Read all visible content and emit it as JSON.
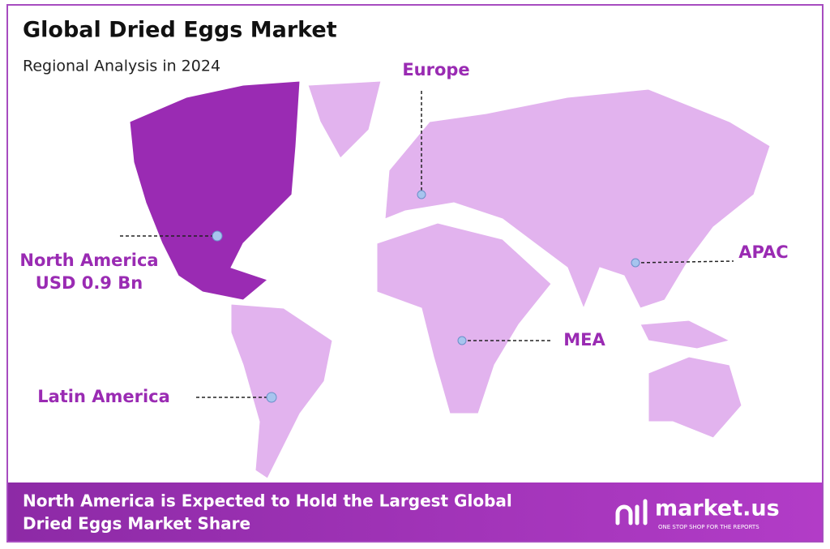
{
  "header": {
    "title": "Global Dried Eggs Market",
    "subtitle": "Regional Analysis in 2024"
  },
  "regions": [
    {
      "name": "North America",
      "value": "USD 0.9 Bn"
    },
    {
      "name": "Europe"
    },
    {
      "name": "APAC"
    },
    {
      "name": "MEA"
    },
    {
      "name": "Latin America"
    }
  ],
  "footer": {
    "lines": [
      "North America is Expected to Hold the Largest Global",
      "Dried Eggs Market Share"
    ],
    "logo": "market.us",
    "tagline": "ONE STOP SHOP FOR THE REPORTS"
  }
}
